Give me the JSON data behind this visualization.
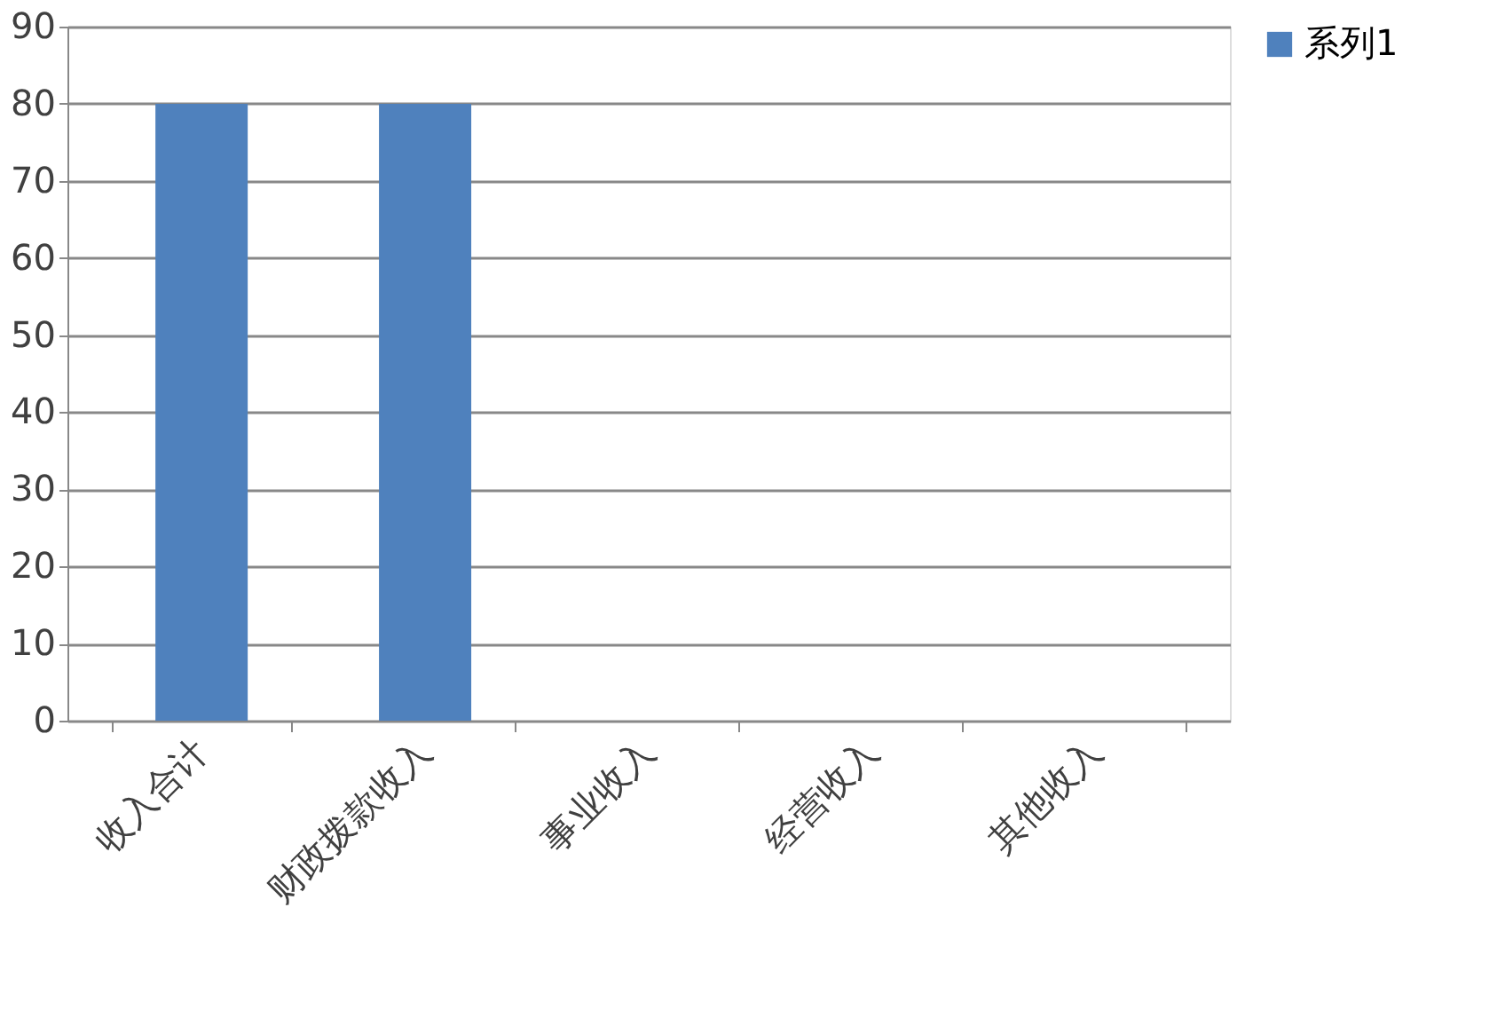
{
  "chart_data": {
    "type": "bar",
    "categories": [
      "收入合计",
      "财政拨款收入",
      "事业收入",
      "经营收入",
      "其他收入"
    ],
    "series": [
      {
        "name": "系列1",
        "color": "#4f81bd",
        "values": [
          80,
          80,
          0,
          0,
          0
        ]
      }
    ],
    "ylim": [
      0,
      90
    ],
    "yticks": [
      0,
      10,
      20,
      30,
      40,
      50,
      60,
      70,
      80,
      90
    ],
    "grid": "y",
    "legend": "right"
  }
}
